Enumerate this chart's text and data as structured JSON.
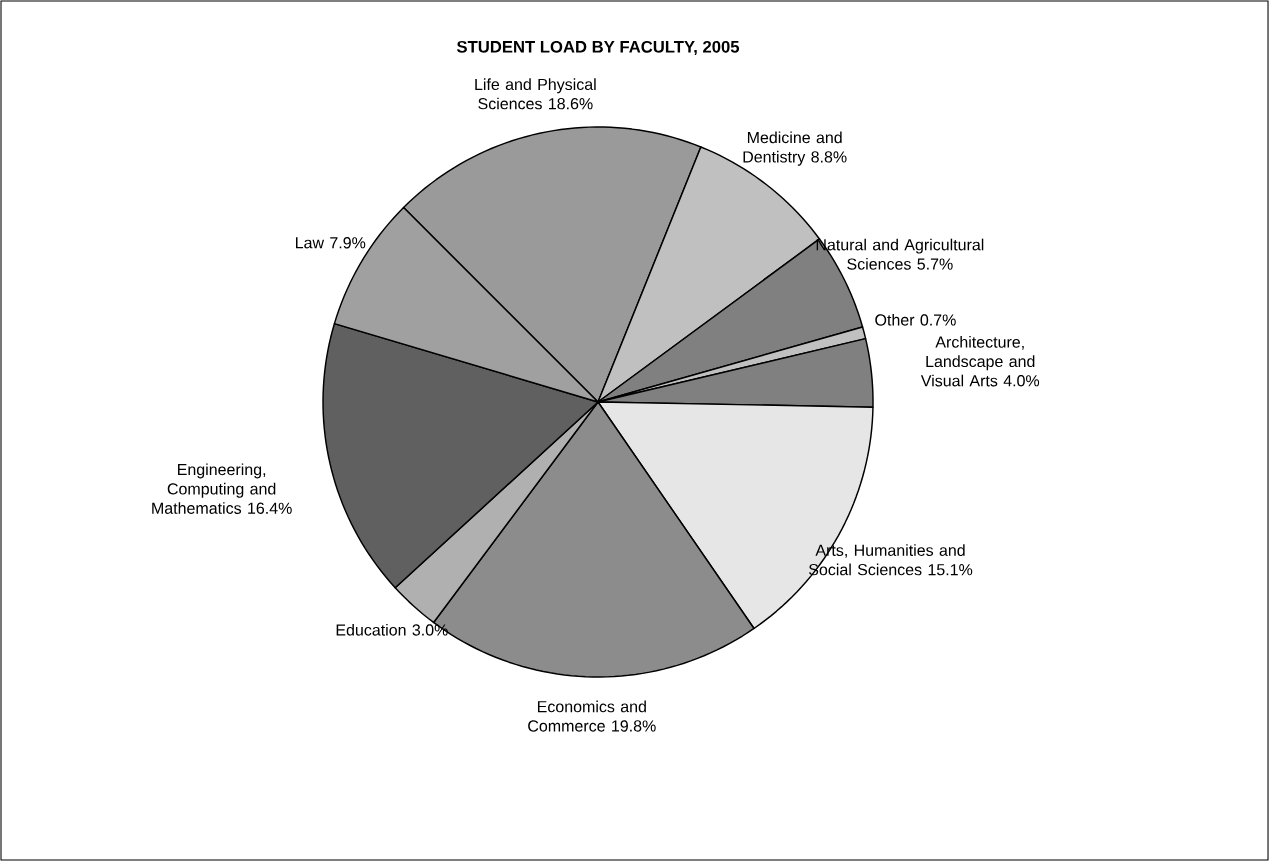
{
  "chart_data": {
    "type": "pie",
    "title": "STUDENT LOAD BY FACULTY, 2005",
    "categories": [
      "Life and Physical Sciences",
      "Medicine and Dentistry",
      "Natural and Agricultural Sciences",
      "Other",
      "Architecture, Landscape and Visual Arts",
      "Arts, Humanities and Social Sciences",
      "Economics and Commerce",
      "Education",
      "Engineering, Computing and Mathematics",
      "Law"
    ],
    "values": [
      18.6,
      8.8,
      5.7,
      0.7,
      4.0,
      15.1,
      19.8,
      3.0,
      16.4,
      7.9
    ],
    "value_labels": [
      "18.6%",
      "8.8%",
      "5.7%",
      "0.7%",
      "4.0%",
      "15.1%",
      "19.8%",
      "3.0%",
      "16.4%",
      "7.9%"
    ],
    "colors": [
      "#9a9a9a",
      "#c0c0c0",
      "#808080",
      "#c0c0c0",
      "#808080",
      "#e6e6e6",
      "#8c8c8c",
      "#b0b0b0",
      "#606060",
      "#a0a0a0"
    ]
  }
}
